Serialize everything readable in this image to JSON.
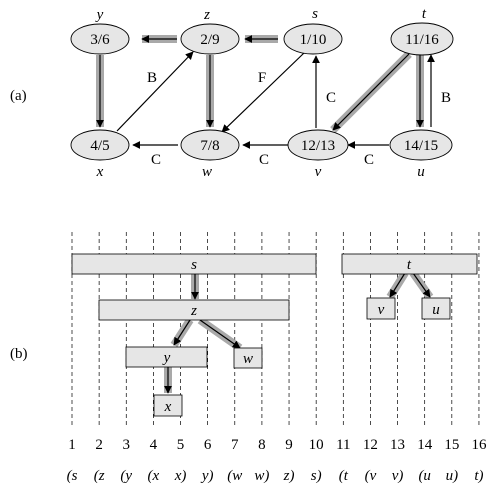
{
  "part_a": {
    "label": "(a)",
    "vertices": [
      {
        "name": "y",
        "times": "3/6"
      },
      {
        "name": "z",
        "times": "2/9"
      },
      {
        "name": "s",
        "times": "1/10"
      },
      {
        "name": "t",
        "times": "11/16"
      },
      {
        "name": "x",
        "times": "4/5"
      },
      {
        "name": "w",
        "times": "7/8"
      },
      {
        "name": "v",
        "times": "12/13"
      },
      {
        "name": "u",
        "times": "14/15"
      }
    ],
    "edge_labels": {
      "x_z": "B",
      "s_w": "F",
      "v_s": "C",
      "u_t": "B",
      "w_x": "C",
      "v_w": "C",
      "u_v": "C"
    }
  },
  "part_b": {
    "label": "(b)",
    "bars": [
      {
        "name": "s"
      },
      {
        "name": "t"
      },
      {
        "name": "z"
      },
      {
        "name": "v"
      },
      {
        "name": "u"
      },
      {
        "name": "y"
      },
      {
        "name": "w"
      },
      {
        "name": "x"
      }
    ],
    "ticks": [
      "1",
      "2",
      "3",
      "4",
      "5",
      "6",
      "7",
      "8",
      "9",
      "10",
      "11",
      "12",
      "13",
      "14",
      "15",
      "16"
    ],
    "parens": [
      "(s",
      "(z",
      "(y",
      "(x",
      "x)",
      "y)",
      "(w",
      "w)",
      "z)",
      "s)",
      "(t",
      "(v",
      "v)",
      "(u",
      "u)",
      "t)"
    ]
  }
}
